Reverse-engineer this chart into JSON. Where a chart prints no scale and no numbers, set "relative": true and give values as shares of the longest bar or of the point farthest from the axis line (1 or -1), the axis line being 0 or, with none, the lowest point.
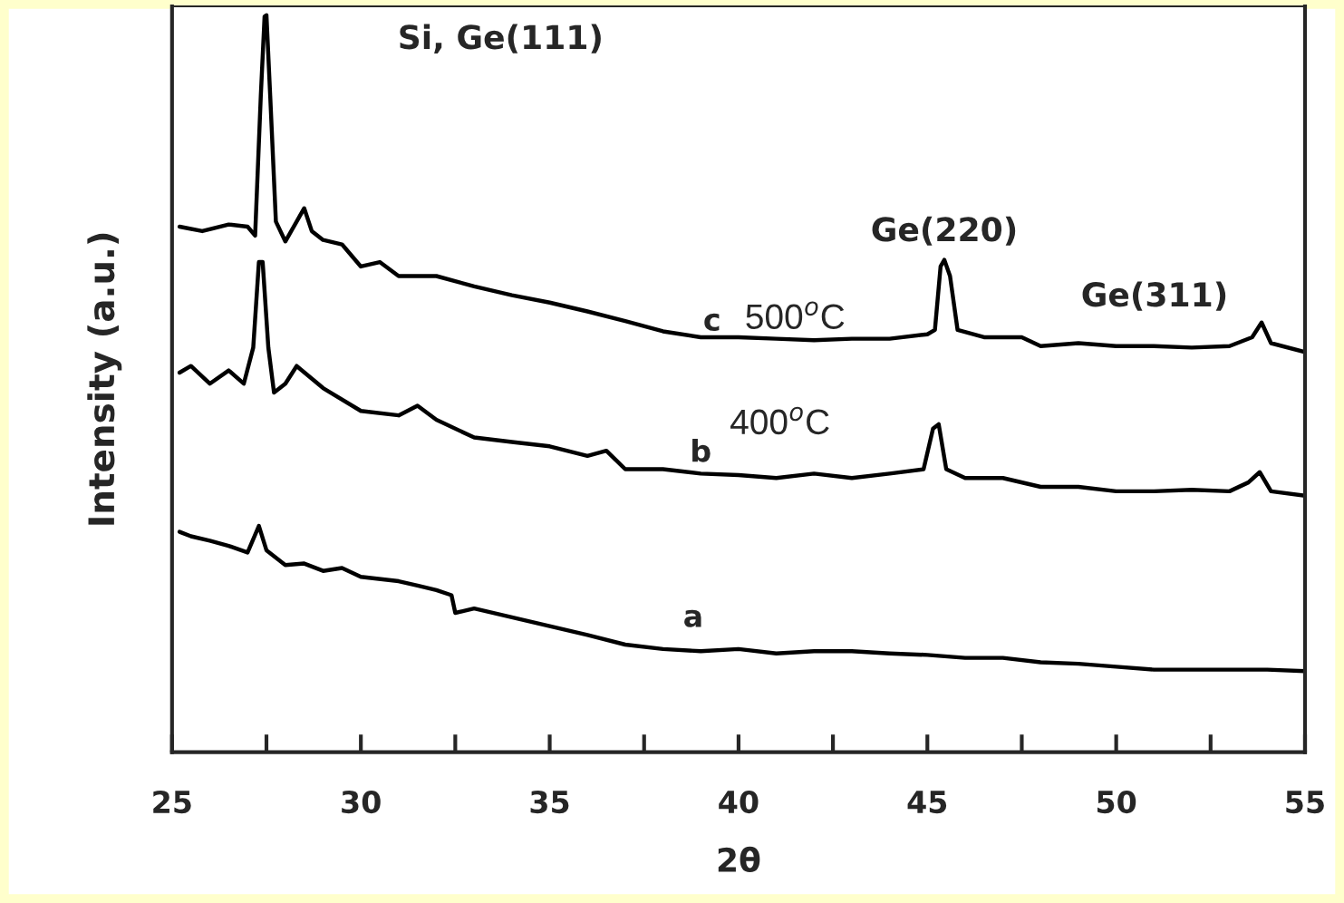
{
  "chart_data": {
    "type": "line",
    "relative": true,
    "xlabel": "2θ",
    "ylabel": "Intensity (a.u.)",
    "xlim": [
      25,
      55
    ],
    "xticks": [
      25,
      30,
      35,
      40,
      45,
      50,
      55
    ],
    "grid": false,
    "marker": "none",
    "line_style": "solid",
    "series": [
      {
        "color": "#000000",
        "x": [
          25.2,
          25.8,
          26.5,
          27.0,
          27.2,
          27.35,
          27.45,
          27.5,
          27.6,
          27.75,
          28.0,
          28.3,
          28.5,
          28.7,
          29.0,
          29.5,
          30.0,
          30.5,
          31.0,
          32.0,
          33.0,
          34.0,
          35.0,
          36.0,
          37.0,
          38.0,
          39.0,
          40.0,
          41.0,
          42.0,
          43.0,
          44.0,
          45.0,
          45.2,
          45.35,
          45.45,
          45.6,
          45.8,
          46.5,
          47.5,
          48.0,
          49.0,
          50.0,
          51.0,
          52.0,
          53.0,
          53.6,
          53.85,
          54.1,
          55.0
        ],
        "values": [
          0.713,
          0.707,
          0.716,
          0.713,
          0.701,
          0.89,
          0.998,
          1.0,
          0.89,
          0.72,
          0.693,
          0.72,
          0.738,
          0.707,
          0.695,
          0.689,
          0.659,
          0.665,
          0.646,
          0.646,
          0.632,
          0.62,
          0.61,
          0.598,
          0.585,
          0.571,
          0.563,
          0.563,
          0.561,
          0.559,
          0.561,
          0.561,
          0.567,
          0.573,
          0.659,
          0.668,
          0.646,
          0.573,
          0.563,
          0.563,
          0.551,
          0.555,
          0.551,
          0.551,
          0.549,
          0.551,
          0.563,
          0.583,
          0.555,
          0.543
        ]
      },
      {
        "color": "#000000",
        "x": [
          25.2,
          25.5,
          26.0,
          26.5,
          26.9,
          27.15,
          27.3,
          27.4,
          27.55,
          27.7,
          28.0,
          28.3,
          29.0,
          30.0,
          31.0,
          31.5,
          32.0,
          33.0,
          34.0,
          35.0,
          36.0,
          36.5,
          37.0,
          38.0,
          39.0,
          40.0,
          41.0,
          42.0,
          43.0,
          44.0,
          44.9,
          45.15,
          45.3,
          45.5,
          46.0,
          47.0,
          48.0,
          49.0,
          50.0,
          51.0,
          52.0,
          53.0,
          53.5,
          53.8,
          54.1,
          55.0
        ],
        "values": [
          0.515,
          0.524,
          0.5,
          0.518,
          0.5,
          0.549,
          0.665,
          0.665,
          0.549,
          0.488,
          0.5,
          0.524,
          0.494,
          0.463,
          0.457,
          0.47,
          0.451,
          0.427,
          0.421,
          0.415,
          0.402,
          0.409,
          0.384,
          0.384,
          0.378,
          0.376,
          0.372,
          0.378,
          0.372,
          0.378,
          0.384,
          0.439,
          0.445,
          0.384,
          0.372,
          0.372,
          0.36,
          0.36,
          0.354,
          0.354,
          0.356,
          0.354,
          0.366,
          0.38,
          0.354,
          0.348
        ]
      },
      {
        "color": "#000000",
        "x": [
          25.2,
          25.5,
          26.0,
          26.5,
          27.0,
          27.3,
          27.5,
          28.0,
          28.5,
          29.0,
          29.5,
          30.0,
          31.0,
          31.5,
          32.0,
          32.4,
          32.5,
          33.0,
          34.0,
          35.0,
          36.0,
          37.0,
          38.0,
          39.0,
          40.0,
          41.0,
          42.0,
          43.0,
          44.0,
          45.0,
          46.0,
          47.0,
          48.0,
          49.0,
          50.0,
          51.0,
          52.0,
          53.0,
          54.0,
          55.0
        ],
        "values": [
          0.299,
          0.293,
          0.287,
          0.28,
          0.271,
          0.307,
          0.274,
          0.254,
          0.256,
          0.246,
          0.25,
          0.238,
          0.232,
          0.226,
          0.22,
          0.213,
          0.189,
          0.195,
          0.183,
          0.171,
          0.159,
          0.146,
          0.14,
          0.137,
          0.14,
          0.134,
          0.137,
          0.137,
          0.134,
          0.132,
          0.128,
          0.128,
          0.122,
          0.12,
          0.116,
          0.112,
          0.112,
          0.112,
          0.112,
          0.11
        ]
      }
    ],
    "annotations": [
      "Si, Ge(111)",
      {
        "text": "Ge(220)",
        "x": 45.45,
        "y": 0.668
      },
      {
        "text": "Ge(311)",
        "x": 53.85,
        "y": 0.583
      },
      {
        "text": "c",
        "x": 39.3,
        "y": 0.563
      },
      {
        "text": "500$^{o}$C",
        "x": 41.5,
        "y": 0.561
      },
      {
        "text": "b",
        "x": 39.0,
        "y": 0.378
      },
      {
        "text": "400$^{o}$C",
        "x": 41.1,
        "y": 0.372
      },
      {
        "text": "a",
        "x": 38.8,
        "y": 0.137
      }
    ]
  }
}
